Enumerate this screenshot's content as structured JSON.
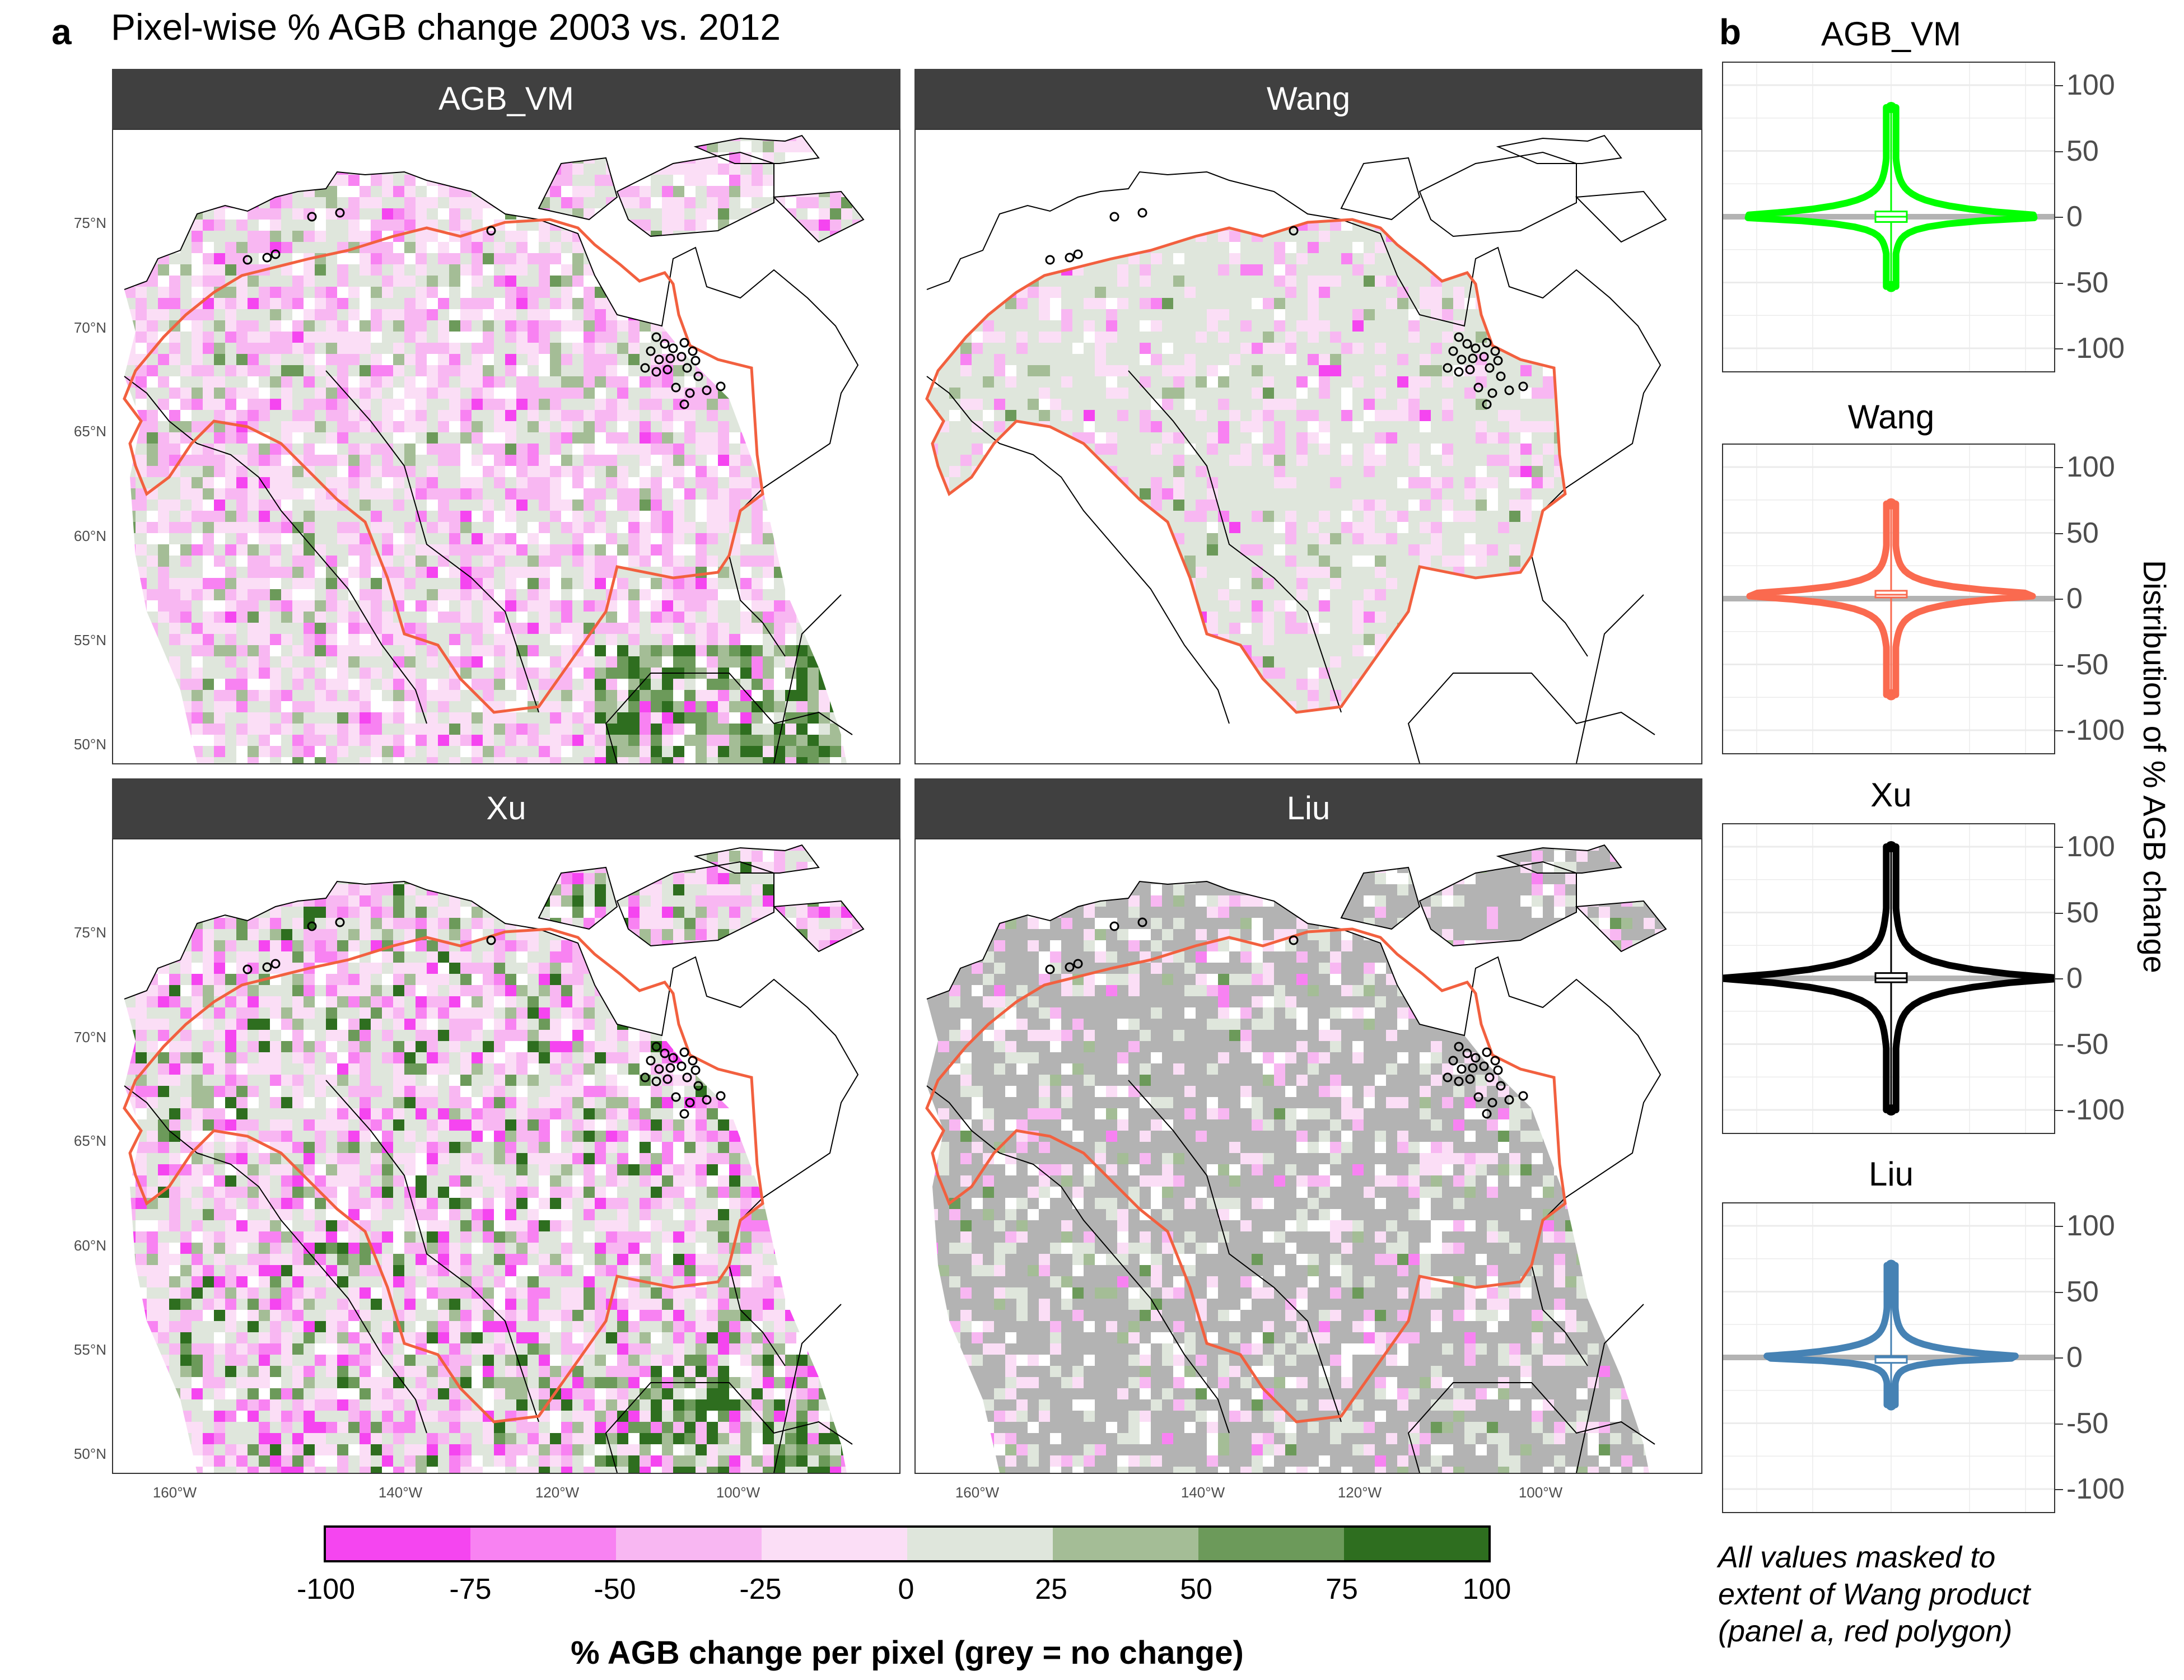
{
  "figure": {
    "panel_a_letter": "a",
    "panel_a_title": "Pixel-wise % AGB change 2003 vs. 2012",
    "panel_b_letter": "b",
    "lat_labels": [
      "75°N",
      "70°N",
      "65°N",
      "60°N",
      "55°N",
      "50°N"
    ],
    "lon_labels": [
      "160°W",
      "140°W",
      "120°W",
      "100°W"
    ],
    "violin_ylabel": "Distribution of % AGB change",
    "violin_ticks": [
      "100",
      "50",
      "0",
      "-50",
      "-100"
    ],
    "colorbar_title": "% AGB change per pixel  (grey = no change)",
    "colorbar_ticks": [
      "-100",
      "-75",
      "-50",
      "-25",
      "0",
      "25",
      "50",
      "75",
      "100"
    ],
    "note_lines": [
      "All values masked to",
      "extent of Wang product",
      "(panel a, red polygon)"
    ]
  },
  "colors": {
    "boundary": "#f2603f",
    "nochange_grey": "#b3b3b3",
    "strip_bg": "#404040",
    "scale": [
      "#f545f0",
      "#f882f2",
      "#f8b7f2",
      "#fbdef6",
      "#dfe6dc",
      "#a4bd96",
      "#6c9a5a",
      "#2e6e1f"
    ]
  },
  "chart_data": [
    {
      "type": "heatmap",
      "title": "AGB_VM",
      "x_ticks": [
        "160°W",
        "140°W",
        "120°W",
        "100°W"
      ],
      "y_ticks": [
        "75°N",
        "70°N",
        "65°N",
        "60°N",
        "55°N",
        "50°N"
      ],
      "color_scale": {
        "min": -100,
        "max": 100,
        "breaks": [
          -100,
          -75,
          -50,
          -25,
          0,
          25,
          50,
          75,
          100
        ]
      }
    },
    {
      "type": "heatmap",
      "title": "Wang",
      "x_ticks": [
        "160°W",
        "140°W",
        "120°W",
        "100°W"
      ],
      "y_ticks": [
        "75°N",
        "70°N",
        "65°N",
        "60°N",
        "55°N",
        "50°N"
      ]
    },
    {
      "type": "heatmap",
      "title": "Xu",
      "x_ticks": [
        "160°W",
        "140°W",
        "120°W",
        "100°W"
      ],
      "y_ticks": [
        "75°N",
        "70°N",
        "65°N",
        "60°N",
        "55°N",
        "50°N"
      ]
    },
    {
      "type": "heatmap",
      "title": "Liu",
      "x_ticks": [
        "160°W",
        "140°W",
        "120°W",
        "100°W"
      ],
      "y_ticks": [
        "75°N",
        "70°N",
        "65°N",
        "60°N",
        "55°N",
        "50°N"
      ]
    },
    {
      "type": "violin",
      "ylabel": "Distribution of % AGB change",
      "ylim": [
        -100,
        100
      ],
      "y_ticks": [
        100,
        50,
        0,
        -50,
        -100
      ],
      "series": [
        {
          "name": "AGB_VM",
          "color": "#00ff00",
          "max": 83,
          "min": -53,
          "median": 0,
          "q1": -4,
          "q3": 4
        },
        {
          "name": "Wang",
          "color": "#fa6a4f",
          "max": 72,
          "min": -73,
          "median": 3,
          "q1": 1,
          "q3": 6
        },
        {
          "name": "Xu",
          "color": "#000000",
          "max": 100,
          "min": -100,
          "median": 0,
          "q1": -3,
          "q3": 4
        },
        {
          "name": "Liu",
          "color": "#4682b4",
          "max": 70,
          "min": -36,
          "median": 0,
          "q1": -1,
          "q3": 1
        }
      ]
    }
  ]
}
